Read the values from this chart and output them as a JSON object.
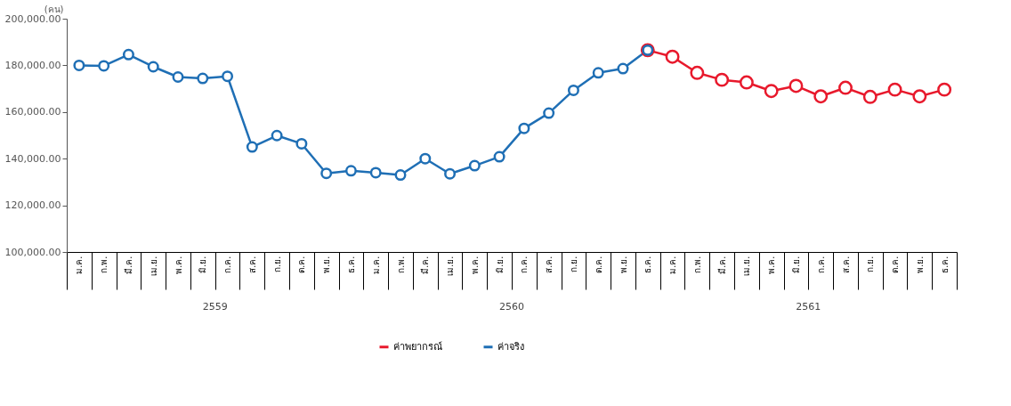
{
  "chart_data": {
    "type": "line",
    "ylabel": "(คน)",
    "categories": [
      "ม.ค.",
      "ก.พ.",
      "มี.ค.",
      "เม.ย.",
      "พ.ค.",
      "มิ.ย.",
      "ก.ค.",
      "ส.ค.",
      "ก.ย.",
      "ต.ค.",
      "พ.ย.",
      "ธ.ค.",
      "ม.ค.",
      "ก.พ.",
      "มี.ค.",
      "เม.ย.",
      "พ.ค.",
      "มิ.ย.",
      "ก.ค.",
      "ส.ค.",
      "ก.ย.",
      "ต.ค.",
      "พ.ย.",
      "ธ.ค.",
      "ม.ค.",
      "ก.พ.",
      "มี.ค.",
      "เม.ย.",
      "พ.ค.",
      "มิ.ย.",
      "ก.ค.",
      "ส.ค.",
      "ก.ย.",
      "ต.ค.",
      "พ.ย.",
      "ธ.ค."
    ],
    "series": [
      {
        "name": "ค่าพยากรณ์",
        "color": "#e8192c",
        "values": [
          null,
          null,
          null,
          null,
          null,
          null,
          null,
          null,
          null,
          null,
          null,
          null,
          null,
          null,
          null,
          null,
          null,
          null,
          null,
          null,
          null,
          null,
          null,
          186500,
          183700,
          176800,
          173800,
          172700,
          169000,
          171200,
          166700,
          170400,
          166500,
          169600,
          166700,
          169600
        ]
      },
      {
        "name": "ค่าจริง",
        "color": "#1f6fb5",
        "values": [
          180000,
          179800,
          184600,
          179400,
          175000,
          174400,
          175300,
          145000,
          149900,
          146400,
          133700,
          134800,
          134000,
          133000,
          140000,
          133500,
          137000,
          140800,
          153000,
          159500,
          169300,
          176800,
          178600,
          186500,
          null,
          null,
          null,
          null,
          null,
          null,
          null,
          null,
          null,
          null,
          null,
          null
        ]
      }
    ],
    "ylim": [
      100000,
      200000
    ],
    "yticks": [
      {
        "value": 100000,
        "label": "100,000.00"
      },
      {
        "value": 120000,
        "label": "120,000.00"
      },
      {
        "value": 140000,
        "label": "140,000.00"
      },
      {
        "value": 160000,
        "label": "160,000.00"
      },
      {
        "value": 180000,
        "label": "180,000.00"
      },
      {
        "value": 200000,
        "label": "200,000.00"
      }
    ],
    "annotations": [
      "2559",
      "2560",
      "2561"
    ],
    "grid": false,
    "legend": "bottom",
    "marker": "circle",
    "line_style": "solid"
  }
}
